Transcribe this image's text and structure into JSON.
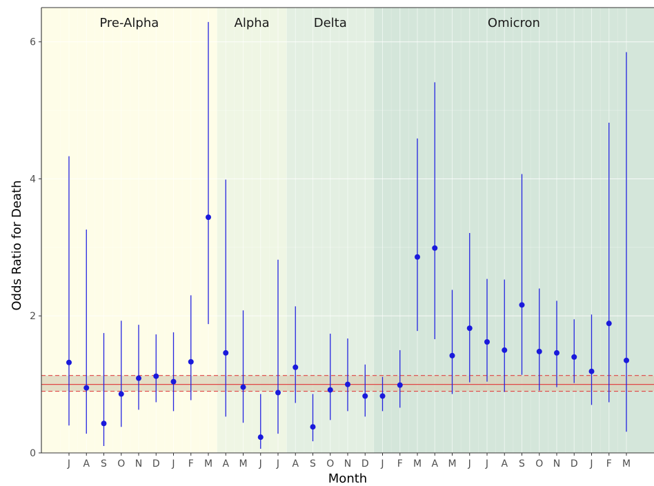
{
  "chart_data": {
    "type": "scatter",
    "subtype": "point-range",
    "xlabel": "Month",
    "ylabel": "Odds Ratio for Death",
    "ylim": [
      0,
      6.5
    ],
    "y_ticks": [
      0,
      2,
      4,
      6
    ],
    "categories": [
      "J",
      "A",
      "S",
      "O",
      "N",
      "D",
      "J",
      "F",
      "M",
      "A",
      "M",
      "J",
      "J",
      "A",
      "S",
      "O",
      "N",
      "D",
      "J",
      "F",
      "M",
      "A",
      "M",
      "J",
      "J",
      "A",
      "S",
      "O",
      "N",
      "D",
      "J",
      "F",
      "M"
    ],
    "series": [
      {
        "values": [
          1.32,
          0.95,
          0.43,
          0.86,
          1.09,
          1.12,
          1.04,
          1.33,
          3.44,
          1.46,
          0.96,
          0.23,
          0.88,
          1.25,
          0.38,
          0.92,
          1.0,
          0.83,
          0.83,
          0.99,
          2.86,
          2.99,
          1.42,
          1.82,
          1.62,
          1.5,
          2.16,
          1.48,
          1.46,
          1.4,
          1.19,
          1.89,
          1.35
        ],
        "lower": [
          0.4,
          0.28,
          0.1,
          0.38,
          0.63,
          0.74,
          0.61,
          0.77,
          1.88,
          0.53,
          0.44,
          0.06,
          0.28,
          0.73,
          0.17,
          0.48,
          0.61,
          0.53,
          0.61,
          0.66,
          1.78,
          1.66,
          0.86,
          1.03,
          1.04,
          0.89,
          1.14,
          0.91,
          0.96,
          1.02,
          0.7,
          0.74,
          0.31
        ],
        "upper": [
          4.33,
          3.26,
          1.75,
          1.93,
          1.87,
          1.73,
          1.76,
          2.3,
          6.29,
          3.99,
          2.08,
          0.86,
          2.82,
          2.14,
          0.86,
          1.74,
          1.67,
          1.29,
          1.11,
          1.5,
          4.59,
          5.41,
          2.38,
          3.21,
          2.54,
          2.53,
          4.07,
          2.4,
          2.22,
          1.95,
          2.02,
          4.82,
          5.85
        ]
      }
    ],
    "reference": {
      "line": 1.0,
      "band_low": 0.9,
      "band_high": 1.13
    },
    "eras": [
      {
        "label": "Pre-Alpha",
        "start": 0,
        "end": 9,
        "color": "#fefde8"
      },
      {
        "label": "Alpha",
        "start": 9,
        "end": 13,
        "color": "#eff6e4"
      },
      {
        "label": "Delta",
        "start": 13,
        "end": 18,
        "color": "#e3efe2"
      },
      {
        "label": "Omicron",
        "start": 18,
        "end": 33,
        "color": "#d4e6da"
      }
    ],
    "colors": {
      "point": "#1a1adb",
      "ci_line": "#2323e0",
      "reference": "#e04545",
      "band": "#d8d0b8"
    },
    "grid": true
  }
}
